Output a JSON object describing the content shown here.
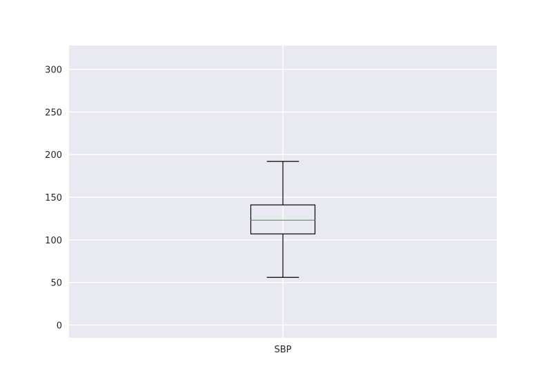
{
  "chart_data": {
    "type": "box",
    "title": "",
    "xlabel": "",
    "ylabel": "",
    "categories": [
      "SBP"
    ],
    "ylim": [
      -15,
      328
    ],
    "yticks": [
      0,
      50,
      100,
      150,
      200,
      250,
      300
    ],
    "ytick_labels": [
      "0",
      "50",
      "100",
      "150",
      "200",
      "250",
      "300"
    ],
    "grid": true,
    "series": [
      {
        "whisker_low": 56,
        "q1": 107,
        "median": 123,
        "q3": 141,
        "whisker_high": 192
      }
    ],
    "colors": {
      "background": "#ffffff",
      "plot_area": "#e9e9f1",
      "grid": "#ffffff",
      "box": "#000000",
      "median": "#5aa55a",
      "text": "#262626"
    }
  }
}
